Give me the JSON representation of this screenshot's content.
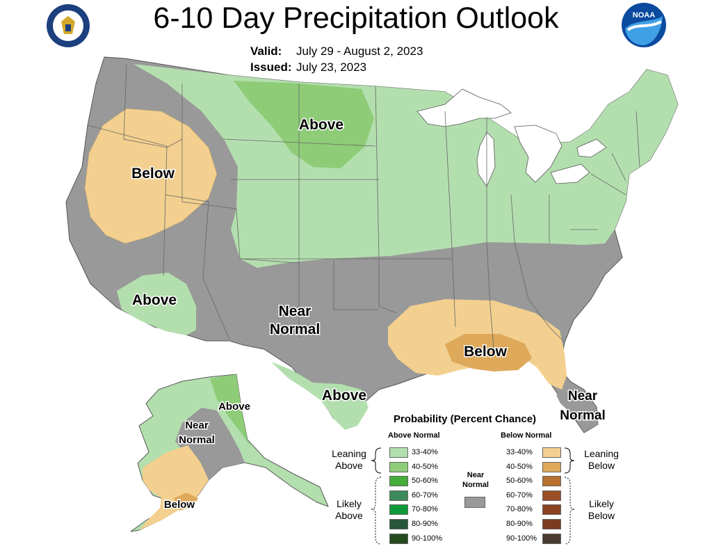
{
  "title": "6-10 Day Precipitation Outlook",
  "valid": {
    "label": "Valid:",
    "value": "July 29 - August 2, 2023"
  },
  "issued": {
    "label": "Issued:",
    "value": "July 23, 2023"
  },
  "region_labels": {
    "above_north": "Above",
    "below_northwest": "Below",
    "above_southwest": "Above",
    "near_normal_south_1": "Near",
    "near_normal_south_2": "Normal",
    "below_southeast": "Below",
    "above_texas": "Above",
    "near_normal_florida_1": "Near",
    "near_normal_florida_2": "Normal",
    "alaska_above": "Above",
    "alaska_near_1": "Near",
    "alaska_near_2": "Normal",
    "alaska_below": "Below"
  },
  "legend": {
    "title": "Probability (Percent Chance)",
    "above_header": "Above Normal",
    "below_header": "Below Normal",
    "near_normal_1": "Near",
    "near_normal_2": "Normal",
    "leaning_above_1": "Leaning",
    "leaning_above_2": "Above",
    "likely_above_1": "Likely",
    "likely_above_2": "Above",
    "leaning_below_1": "Leaning",
    "leaning_below_2": "Below",
    "likely_below_1": "Likely",
    "likely_below_2": "Below",
    "above_rows": [
      {
        "range": "33-40%",
        "color": "#b3dfae"
      },
      {
        "range": "40-50%",
        "color": "#8ecc78"
      },
      {
        "range": "50-60%",
        "color": "#44ad3a"
      },
      {
        "range": "60-70%",
        "color": "#3c8a5a"
      },
      {
        "range": "70-80%",
        "color": "#0f9a3a"
      },
      {
        "range": "80-90%",
        "color": "#27563a"
      },
      {
        "range": "90-100%",
        "color": "#244a1e"
      }
    ],
    "below_rows": [
      {
        "range": "33-40%",
        "color": "#f3d08f"
      },
      {
        "range": "40-50%",
        "color": "#dea95a"
      },
      {
        "range": "50-60%",
        "color": "#b8702e"
      },
      {
        "range": "60-70%",
        "color": "#9a4f26"
      },
      {
        "range": "70-80%",
        "color": "#8a4323"
      },
      {
        "range": "80-90%",
        "color": "#7a3c20"
      },
      {
        "range": "90-100%",
        "color": "#4a3a30"
      }
    ],
    "near_color": "#999999"
  },
  "colors": {
    "near_normal": "#999999",
    "leaning_above": "#b3dfae",
    "above_40_50": "#8ecc78",
    "leaning_below": "#f3d08f",
    "below_40_50": "#dea95a",
    "water": "#ffffff"
  }
}
